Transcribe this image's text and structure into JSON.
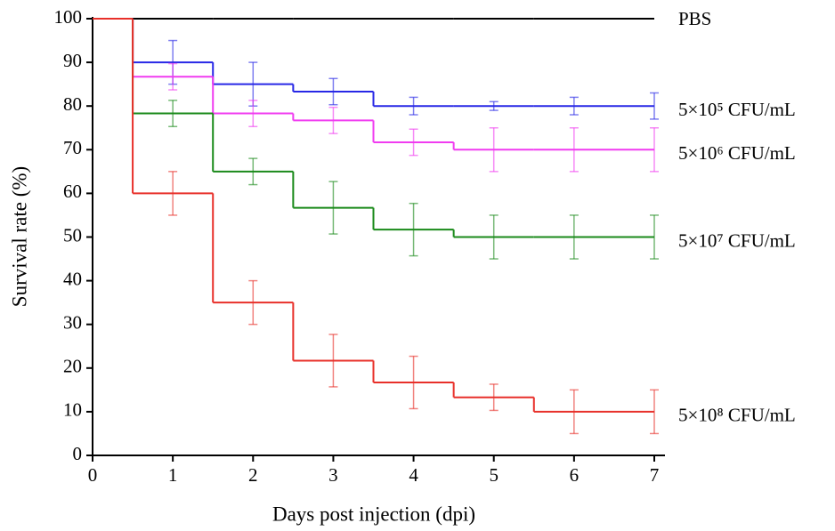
{
  "chart_data": {
    "type": "line",
    "step": "post",
    "xlabel": "Days post injection (dpi)",
    "ylabel": "Survival rate (%)",
    "x": [
      0,
      0.5,
      1.5,
      2.5,
      3.5,
      4.5,
      5.5,
      7
    ],
    "xlim": [
      0,
      7
    ],
    "xticks": [
      0,
      1,
      2,
      3,
      4,
      5,
      6,
      7
    ],
    "ylim": [
      0,
      100
    ],
    "yticks": [
      0,
      10,
      20,
      30,
      40,
      50,
      60,
      70,
      80,
      90,
      100
    ],
    "series": [
      {
        "name": "PBS",
        "color": "#000000",
        "values": [
          100,
          100,
          100,
          100,
          100,
          100,
          100,
          100
        ]
      },
      {
        "name": "5×10⁵ CFU/mL",
        "color": "#2828e6",
        "values": [
          100,
          90,
          85,
          83.3,
          80,
          80,
          80,
          80
        ],
        "error_bars": {
          "x": [
            1,
            2,
            3,
            4,
            5,
            6,
            7
          ],
          "values": [
            90,
            85,
            83.3,
            80,
            80,
            80,
            80
          ],
          "errors": [
            5,
            5,
            3,
            2,
            1,
            2,
            3
          ]
        }
      },
      {
        "name": "5×10⁶ CFU/mL",
        "color": "#f03cf0",
        "values": [
          100,
          86.7,
          78.3,
          76.7,
          71.7,
          70,
          70,
          70
        ],
        "error_bars": {
          "x": [
            1,
            2,
            3,
            4,
            5,
            6,
            7
          ],
          "values": [
            86.7,
            78.3,
            76.7,
            71.7,
            70,
            70,
            70
          ],
          "errors": [
            3,
            3,
            3,
            3,
            5,
            5,
            5
          ]
        }
      },
      {
        "name": "5×10⁷ CFU/mL",
        "color": "#1a8a1a",
        "values": [
          100,
          78.3,
          65,
          56.7,
          51.7,
          50,
          50,
          50
        ],
        "error_bars": {
          "x": [
            1,
            2,
            3,
            4,
            5,
            6,
            7
          ],
          "values": [
            78.3,
            65,
            56.7,
            51.7,
            50,
            50,
            50
          ],
          "errors": [
            3,
            3,
            6,
            6,
            5,
            5,
            5
          ]
        }
      },
      {
        "name": "5×10⁸ CFU/mL",
        "color": "#e8302a",
        "values": [
          100,
          60,
          35,
          21.7,
          16.7,
          13.3,
          10,
          10
        ],
        "error_bars": {
          "x": [
            1,
            2,
            3,
            4,
            5,
            6,
            7
          ],
          "values": [
            60,
            35,
            21.7,
            16.7,
            13.3,
            10,
            10
          ],
          "errors": [
            5,
            5,
            6,
            6,
            3,
            5,
            5
          ]
        }
      }
    ]
  }
}
